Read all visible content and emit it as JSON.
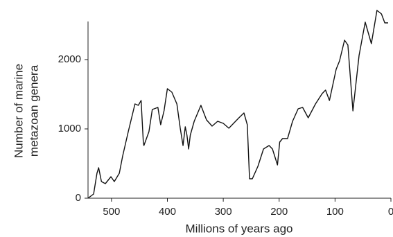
{
  "chart_data": {
    "type": "line",
    "xlabel": "Millions of years ago",
    "ylabel": [
      "Number of marine",
      "metazoan genera"
    ],
    "x": [
      542,
      532,
      526,
      523,
      518,
      511,
      501,
      495,
      486,
      480,
      470,
      458,
      452,
      447,
      443,
      442,
      433,
      427,
      417,
      412,
      406,
      400,
      392,
      383,
      377,
      372,
      368,
      365,
      362,
      359,
      352,
      340,
      330,
      320,
      310,
      300,
      290,
      272,
      263,
      257,
      253,
      248,
      238,
      228,
      218,
      212,
      203,
      199,
      194,
      185,
      176,
      166,
      158,
      148,
      135,
      123,
      117,
      110,
      98,
      92,
      83,
      77,
      68,
      57,
      46,
      35,
      25,
      17,
      11,
      5
    ],
    "series": [
      {
        "color": "#111111",
        "values": [
          0,
          60,
          360,
          440,
          240,
          210,
          310,
          240,
          360,
          610,
          960,
          1360,
          1340,
          1410,
          800,
          760,
          960,
          1280,
          1310,
          1060,
          1260,
          1580,
          1530,
          1360,
          1010,
          760,
          1030,
          910,
          710,
          910,
          1110,
          1340,
          1130,
          1040,
          1110,
          1080,
          1010,
          1160,
          1230,
          1060,
          280,
          280,
          460,
          710,
          760,
          710,
          480,
          810,
          860,
          860,
          1110,
          1290,
          1310,
          1160,
          1360,
          1510,
          1560,
          1410,
          1860,
          1980,
          2280,
          2210,
          1260,
          2060,
          2540,
          2230,
          2710,
          2660,
          2530,
          2530
        ]
      }
    ],
    "xlim": [
      542,
      0
    ],
    "xticks": [
      500,
      400,
      300,
      200,
      100,
      0
    ],
    "ylim": [
      0,
      2750
    ],
    "yticks": [
      0,
      1000,
      2000
    ]
  }
}
